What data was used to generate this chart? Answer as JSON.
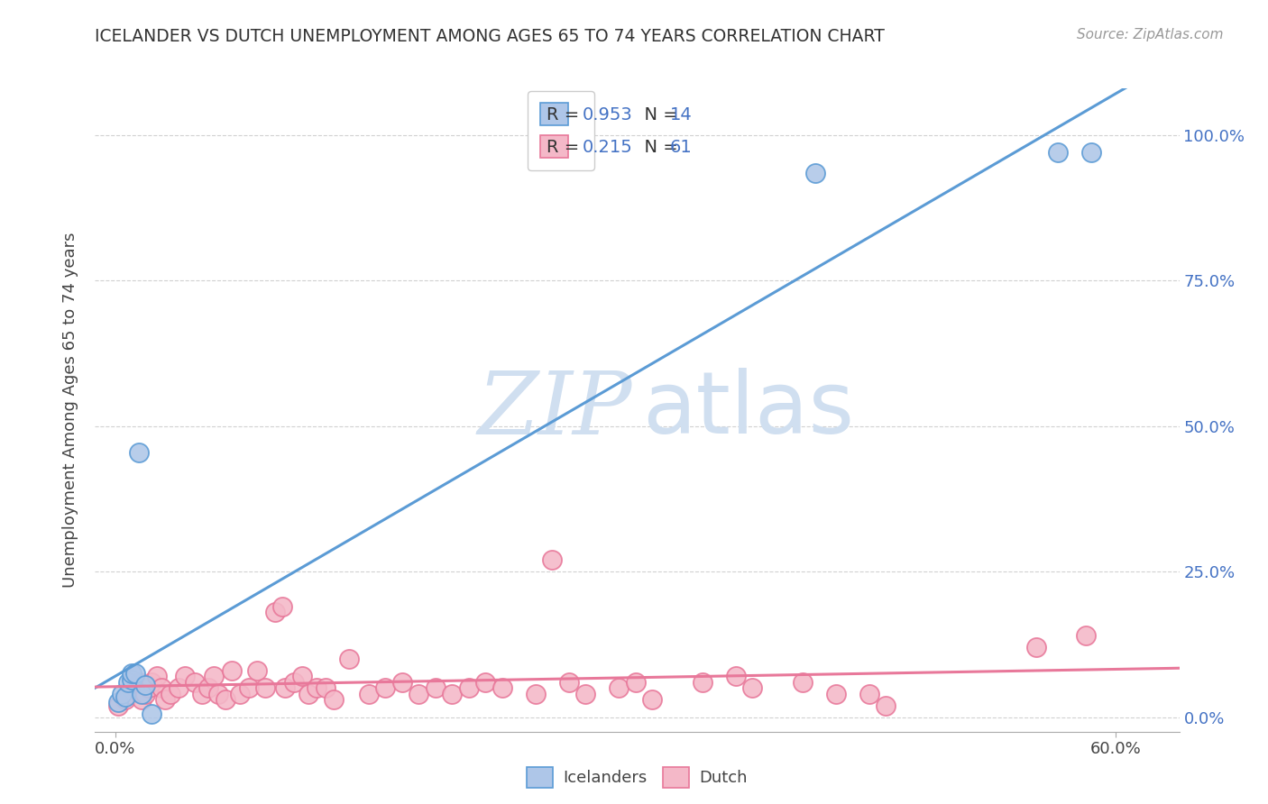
{
  "title": "ICELANDER VS DUTCH UNEMPLOYMENT AMONG AGES 65 TO 74 YEARS CORRELATION CHART",
  "source": "Source: ZipAtlas.com",
  "ylabel": "Unemployment Among Ages 65 to 74 years",
  "x_tick_positions": [
    0.0,
    0.6
  ],
  "x_tick_labels": [
    "0.0%",
    "60.0%"
  ],
  "y_ticks_right": [
    0.0,
    0.25,
    0.5,
    0.75,
    1.0
  ],
  "y_tick_labels_right": [
    "0.0%",
    "25.0%",
    "50.0%",
    "75.0%",
    "100.0%"
  ],
  "xlim": [
    -0.012,
    0.638
  ],
  "ylim": [
    -0.025,
    1.08
  ],
  "background_color": "#ffffff",
  "grid_color": "#cccccc",
  "icelanders_face_color": "#aec6e8",
  "icelanders_edge_color": "#5b9bd5",
  "dutch_face_color": "#f4b8c8",
  "dutch_edge_color": "#e8789a",
  "legend_value_color": "#4472c4",
  "legend_label_color": "#333333",
  "right_axis_color": "#4472c4",
  "icelanders_R": "0.953",
  "icelanders_N": "14",
  "dutch_R": "0.215",
  "dutch_N": "61",
  "icelanders_x": [
    0.002,
    0.004,
    0.006,
    0.008,
    0.01,
    0.01,
    0.012,
    0.014,
    0.016,
    0.018,
    0.022,
    0.42,
    0.565,
    0.585
  ],
  "icelanders_y": [
    0.025,
    0.04,
    0.035,
    0.06,
    0.065,
    0.075,
    0.075,
    0.455,
    0.04,
    0.055,
    0.005,
    0.935,
    0.97,
    0.97
  ],
  "dutch_x": [
    0.002,
    0.006,
    0.009,
    0.012,
    0.014,
    0.016,
    0.018,
    0.02,
    0.022,
    0.025,
    0.028,
    0.03,
    0.033,
    0.038,
    0.042,
    0.048,
    0.052,
    0.056,
    0.059,
    0.062,
    0.066,
    0.07,
    0.075,
    0.08,
    0.085,
    0.09,
    0.096,
    0.1,
    0.102,
    0.107,
    0.112,
    0.116,
    0.121,
    0.126,
    0.131,
    0.14,
    0.152,
    0.162,
    0.172,
    0.182,
    0.192,
    0.202,
    0.212,
    0.222,
    0.232,
    0.252,
    0.262,
    0.272,
    0.282,
    0.302,
    0.312,
    0.322,
    0.352,
    0.372,
    0.382,
    0.412,
    0.432,
    0.452,
    0.462,
    0.552,
    0.582
  ],
  "dutch_y": [
    0.02,
    0.03,
    0.04,
    0.05,
    0.06,
    0.03,
    0.04,
    0.05,
    0.06,
    0.07,
    0.05,
    0.03,
    0.04,
    0.05,
    0.07,
    0.06,
    0.04,
    0.05,
    0.07,
    0.04,
    0.03,
    0.08,
    0.04,
    0.05,
    0.08,
    0.05,
    0.18,
    0.19,
    0.05,
    0.06,
    0.07,
    0.04,
    0.05,
    0.05,
    0.03,
    0.1,
    0.04,
    0.05,
    0.06,
    0.04,
    0.05,
    0.04,
    0.05,
    0.06,
    0.05,
    0.04,
    0.27,
    0.06,
    0.04,
    0.05,
    0.06,
    0.03,
    0.06,
    0.07,
    0.05,
    0.06,
    0.04,
    0.04,
    0.02,
    0.12,
    0.14
  ]
}
